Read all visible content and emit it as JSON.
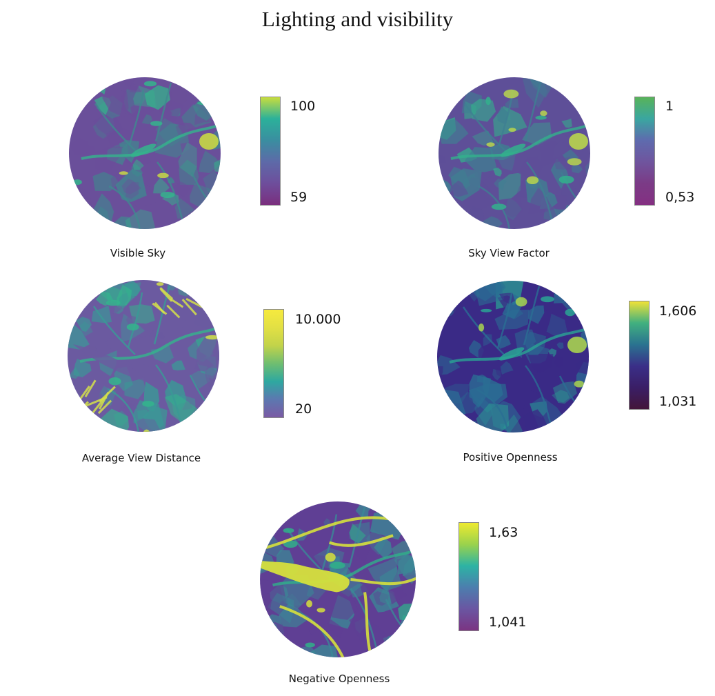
{
  "title": "Lighting and visibility",
  "panels": [
    {
      "caption": "Visible Sky",
      "legend_max": "100",
      "legend_min": "59",
      "colors": {
        "base": "#6a4f9a",
        "mid": "#3e8a8e",
        "high": "#34b48c",
        "peak": "#c8d845"
      },
      "legend_gradient": [
        "#c8dd3e",
        "#2bb19a",
        "#3a8ea0",
        "#5d6aa8",
        "#6e4e9c",
        "#7a2f7e"
      ]
    },
    {
      "caption": "Sky View Factor",
      "legend_max": "1",
      "legend_min": "0,53",
      "colors": {
        "base": "#5e4f98",
        "mid": "#3f7f92",
        "high": "#33b08c",
        "peak": "#b9d54d"
      },
      "legend_gradient": [
        "#58b35a",
        "#3aa6a0",
        "#5e6bae",
        "#6f559e",
        "#7b3b86",
        "#843082"
      ]
    },
    {
      "caption": "Average View Distance",
      "legend_max": "10.000",
      "legend_min": "20",
      "colors": {
        "base": "#6b5aa0",
        "mid": "#3a9a96",
        "high": "#34b48c",
        "peak": "#d3e04a"
      },
      "legend_gradient": [
        "#f6ea3e",
        "#e2e044",
        "#c2d34a",
        "#6fbe70",
        "#2ea8a0",
        "#5c78b0",
        "#7a5aa4"
      ]
    },
    {
      "caption": "Positive Openness",
      "legend_max": "1,606",
      "legend_min": "1,031",
      "colors": {
        "base": "#3a2a86",
        "mid": "#2a6e94",
        "high": "#2aa494",
        "peak": "#a8d250"
      },
      "legend_gradient": [
        "#f0e238",
        "#41b07f",
        "#2a7390",
        "#3a2f88",
        "#3a1e66",
        "#43163a"
      ]
    },
    {
      "caption": "Negative Openness",
      "legend_max": "1,63",
      "legend_min": "1,041",
      "colors": {
        "base": "#5f3f94",
        "mid": "#3a8a96",
        "high": "#30b08a",
        "peak": "#d6e03c"
      },
      "legend_gradient": [
        "#eeea30",
        "#9ad24c",
        "#2db3a4",
        "#4c7eae",
        "#6a56a2",
        "#7b3482"
      ]
    }
  ]
}
